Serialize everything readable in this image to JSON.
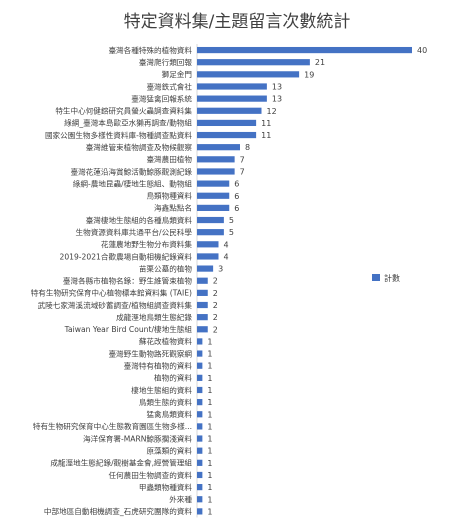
{
  "chart_data": {
    "type": "bar",
    "orientation": "horizontal",
    "title": "特定資料集/主題留言次數統計",
    "xlabel": "",
    "ylabel": "",
    "xlim": [
      0,
      40
    ],
    "grid": false,
    "legend_position": "right",
    "color": "#4472C4",
    "categories": [
      "臺灣各種特殊的植物資料",
      "臺灣爬行類回報",
      "獅足金門",
      "臺灣鉄式會社",
      "臺灣猛禽回報系統",
      "特生中心何健鎔研究員螢火蟲調查資料集",
      "綠網_臺灣本島歐亞水獺再調查/動物組",
      "國家公園生物多樣性資料庫-物種調查點資料",
      "臺灣維管束植物調查及物候觀察",
      "臺灣農田植物",
      "臺灣花蓮沿海賞鯨活動鯨豚觀測紀錄",
      "綠網-農地昆蟲/棲地生態組、動物組",
      "鳥類物種資料",
      "海鑫點點名",
      "臺灣棲地生態組的各種鳥類資料",
      "生物資源資料庫共通平台/公民科學",
      "花蓮農地野生物分布資料集",
      "2019-2021合歡農場自動相機紀錄資料",
      "苗栗公墓的植物",
      "臺灣各縣市植物名錄：野生維管束植物",
      "特有生物研究保育中心植物標本館資料集 (TAIE)",
      "武陵七家灣溪流域砂蓄調查/植物組調查資料集",
      "成龍溼地鳥類生態紀錄",
      "Taiwan Year Bird Count/棲地生態組",
      "蘇花改植物資料",
      "臺灣野生動物路死觀察網",
      "臺灣特有植物的資料",
      "植物的資料",
      "棲地生態組的資料",
      "鳥類生態的資料",
      "猛禽鳥類資料",
      "特有生物研究保育中心生態教育園區生物多樣...",
      "海洋保育署-MARN鯨豚擱淺資料",
      "原藻類的資料",
      "成龍溼地生態紀錄/觀樹基金會,經營管理組",
      "任何農田生物調查的資料",
      "甲蟲類物種資料",
      "外來種",
      "中部地區自動相機調查_石虎研究團隊的資料"
    ],
    "series": [
      {
        "name": "計數",
        "values": [
          40,
          21,
          19,
          13,
          13,
          12,
          11,
          11,
          8,
          7,
          7,
          6,
          6,
          6,
          5,
          5,
          4,
          4,
          3,
          2,
          2,
          2,
          2,
          2,
          1,
          1,
          1,
          1,
          1,
          1,
          1,
          1,
          1,
          1,
          1,
          1,
          1,
          1,
          1
        ]
      }
    ]
  }
}
